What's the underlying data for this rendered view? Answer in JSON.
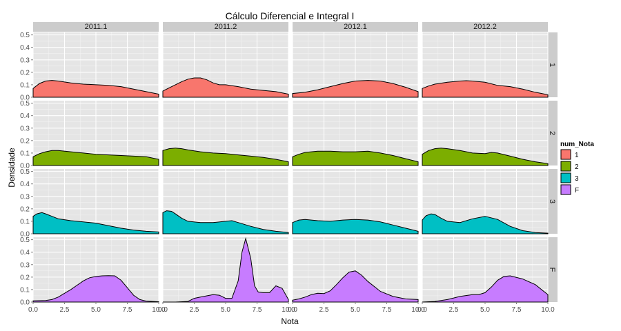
{
  "chart_data": {
    "type": "area",
    "title": "Cálculo Diferencial e Integral I",
    "xlabel": "Nota",
    "ylabel": "Densidade",
    "xlim": [
      0,
      10
    ],
    "ylim": [
      0,
      0.52
    ],
    "xticks": [
      0,
      2.5,
      5,
      7.5,
      10
    ],
    "xtick_labels": [
      "0.0",
      "2.5",
      "5.0",
      "7.5",
      "10.0"
    ],
    "yticks": [
      0,
      0.1,
      0.2,
      0.3,
      0.4,
      0.5
    ],
    "ytick_labels": [
      "0.0",
      "0.1",
      "0.2",
      "0.3",
      "0.4",
      "0.5"
    ],
    "grid": true,
    "legend_position": "right",
    "columns": [
      "2011.1",
      "2011.2",
      "2012.1",
      "2012.2"
    ],
    "rows": [
      "1",
      "2",
      "3",
      "F"
    ],
    "legend": {
      "title": "num_Nota",
      "entries": [
        {
          "label": "1",
          "color": "#F8766D"
        },
        {
          "label": "2",
          "color": "#7CAE00"
        },
        {
          "label": "3",
          "color": "#00BFC4"
        },
        {
          "label": "F",
          "color": "#C77CFF"
        }
      ]
    },
    "panels": [
      {
        "row": "1",
        "column": "2011.1",
        "x": [
          0,
          0.5,
          1,
          1.5,
          2,
          3,
          4,
          5,
          6,
          7,
          8,
          9,
          10
        ],
        "y": [
          0.07,
          0.11,
          0.13,
          0.135,
          0.13,
          0.115,
          0.105,
          0.1,
          0.095,
          0.085,
          0.065,
          0.045,
          0.025
        ]
      },
      {
        "row": "1",
        "column": "2011.2",
        "x": [
          0,
          0.5,
          1,
          1.5,
          2,
          2.5,
          3,
          3.5,
          4,
          4.5,
          5,
          6,
          7,
          8,
          9,
          10
        ],
        "y": [
          0.05,
          0.075,
          0.1,
          0.125,
          0.145,
          0.155,
          0.155,
          0.14,
          0.115,
          0.1,
          0.1,
          0.085,
          0.065,
          0.055,
          0.045,
          0.025
        ]
      },
      {
        "row": "1",
        "column": "2012.1",
        "x": [
          0,
          1,
          2,
          3,
          4,
          5,
          6,
          7,
          8,
          9,
          10
        ],
        "y": [
          0.03,
          0.04,
          0.06,
          0.085,
          0.11,
          0.13,
          0.135,
          0.13,
          0.11,
          0.08,
          0.045
        ]
      },
      {
        "row": "1",
        "column": "2012.2",
        "x": [
          0,
          0.5,
          1,
          2,
          3,
          3.5,
          4,
          5,
          6,
          7,
          8,
          9,
          10
        ],
        "y": [
          0.07,
          0.09,
          0.105,
          0.12,
          0.13,
          0.133,
          0.13,
          0.12,
          0.095,
          0.085,
          0.065,
          0.04,
          0.02
        ]
      },
      {
        "row": "2",
        "column": "2011.1",
        "x": [
          0,
          0.5,
          1,
          1.5,
          2,
          3,
          4,
          5,
          6,
          7,
          8,
          9,
          10
        ],
        "y": [
          0.07,
          0.095,
          0.11,
          0.12,
          0.12,
          0.11,
          0.1,
          0.09,
          0.085,
          0.08,
          0.075,
          0.07,
          0.05
        ]
      },
      {
        "row": "2",
        "column": "2011.2",
        "x": [
          0,
          0.5,
          1,
          1.5,
          2,
          3,
          4,
          5,
          6,
          7,
          8,
          9,
          10
        ],
        "y": [
          0.12,
          0.135,
          0.14,
          0.135,
          0.125,
          0.11,
          0.1,
          0.095,
          0.085,
          0.075,
          0.065,
          0.05,
          0.03
        ]
      },
      {
        "row": "2",
        "column": "2012.1",
        "x": [
          0,
          0.5,
          1,
          2,
          3,
          4,
          5,
          6,
          7,
          8,
          9,
          10
        ],
        "y": [
          0.07,
          0.09,
          0.105,
          0.115,
          0.115,
          0.11,
          0.11,
          0.115,
          0.1,
          0.08,
          0.055,
          0.03
        ]
      },
      {
        "row": "2",
        "column": "2012.2",
        "x": [
          0,
          0.5,
          1,
          1.5,
          2,
          3,
          4,
          5,
          5.5,
          6,
          7,
          8,
          9,
          10
        ],
        "y": [
          0.09,
          0.12,
          0.135,
          0.14,
          0.135,
          0.12,
          0.1,
          0.095,
          0.105,
          0.1,
          0.075,
          0.05,
          0.03,
          0.015
        ]
      },
      {
        "row": "3",
        "column": "2011.1",
        "x": [
          0,
          0.3,
          0.7,
          1,
          1.5,
          2,
          3,
          4,
          5,
          6,
          7,
          8,
          9,
          10
        ],
        "y": [
          0.14,
          0.16,
          0.17,
          0.16,
          0.14,
          0.12,
          0.105,
          0.095,
          0.085,
          0.065,
          0.045,
          0.03,
          0.02,
          0.015
        ]
      },
      {
        "row": "3",
        "column": "2011.2",
        "x": [
          0,
          0.3,
          0.7,
          1,
          1.5,
          2,
          3,
          4,
          5,
          5.5,
          6,
          7,
          8,
          9,
          10
        ],
        "y": [
          0.17,
          0.185,
          0.18,
          0.16,
          0.125,
          0.1,
          0.09,
          0.09,
          0.1,
          0.105,
          0.09,
          0.06,
          0.035,
          0.02,
          0.01
        ]
      },
      {
        "row": "3",
        "column": "2012.1",
        "x": [
          0,
          0.5,
          1,
          2,
          3,
          4,
          5,
          6,
          7,
          8,
          9,
          10
        ],
        "y": [
          0.09,
          0.11,
          0.115,
          0.105,
          0.1,
          0.11,
          0.115,
          0.11,
          0.095,
          0.07,
          0.045,
          0.02
        ]
      },
      {
        "row": "3",
        "column": "2012.2",
        "x": [
          0,
          0.3,
          0.7,
          1,
          1.5,
          2,
          3,
          4,
          5,
          6,
          7,
          8,
          9,
          10
        ],
        "y": [
          0.11,
          0.145,
          0.16,
          0.155,
          0.125,
          0.1,
          0.09,
          0.12,
          0.14,
          0.115,
          0.06,
          0.025,
          0.01,
          0.005
        ]
      },
      {
        "row": "F",
        "column": "2011.1",
        "x": [
          0,
          1,
          1.5,
          2,
          2.5,
          3,
          3.5,
          4,
          4.5,
          5,
          5.5,
          6,
          6.5,
          7,
          7.5,
          8,
          8.5,
          9,
          10
        ],
        "y": [
          0.01,
          0.012,
          0.02,
          0.04,
          0.07,
          0.1,
          0.135,
          0.17,
          0.195,
          0.205,
          0.21,
          0.212,
          0.21,
          0.175,
          0.115,
          0.055,
          0.02,
          0.008,
          0.002
        ]
      },
      {
        "row": "F",
        "column": "2011.2",
        "x": [
          0,
          1,
          2,
          2.5,
          3,
          3.5,
          4,
          4.5,
          5,
          5.5,
          6,
          6.3,
          6.6,
          7,
          7.3,
          7.6,
          8,
          8.5,
          9,
          9.5,
          10
        ],
        "y": [
          0.0,
          0.0,
          0.005,
          0.03,
          0.04,
          0.05,
          0.06,
          0.055,
          0.03,
          0.03,
          0.17,
          0.4,
          0.51,
          0.35,
          0.13,
          0.08,
          0.075,
          0.075,
          0.13,
          0.11,
          0.02
        ]
      },
      {
        "row": "F",
        "column": "2012.1",
        "x": [
          0,
          0.5,
          1,
          1.5,
          2,
          2.5,
          3,
          3.5,
          4,
          4.5,
          5,
          5.5,
          6,
          7,
          8,
          9,
          10
        ],
        "y": [
          0.015,
          0.025,
          0.04,
          0.06,
          0.07,
          0.068,
          0.09,
          0.14,
          0.195,
          0.24,
          0.25,
          0.215,
          0.165,
          0.085,
          0.045,
          0.025,
          0.02
        ]
      },
      {
        "row": "F",
        "column": "2012.2",
        "x": [
          0,
          1,
          2,
          3,
          4,
          4.5,
          5,
          5.5,
          6,
          6.5,
          7,
          8,
          9,
          10
        ],
        "y": [
          0.0,
          0.005,
          0.02,
          0.045,
          0.06,
          0.06,
          0.075,
          0.12,
          0.175,
          0.205,
          0.21,
          0.185,
          0.14,
          0.06
        ]
      }
    ]
  }
}
